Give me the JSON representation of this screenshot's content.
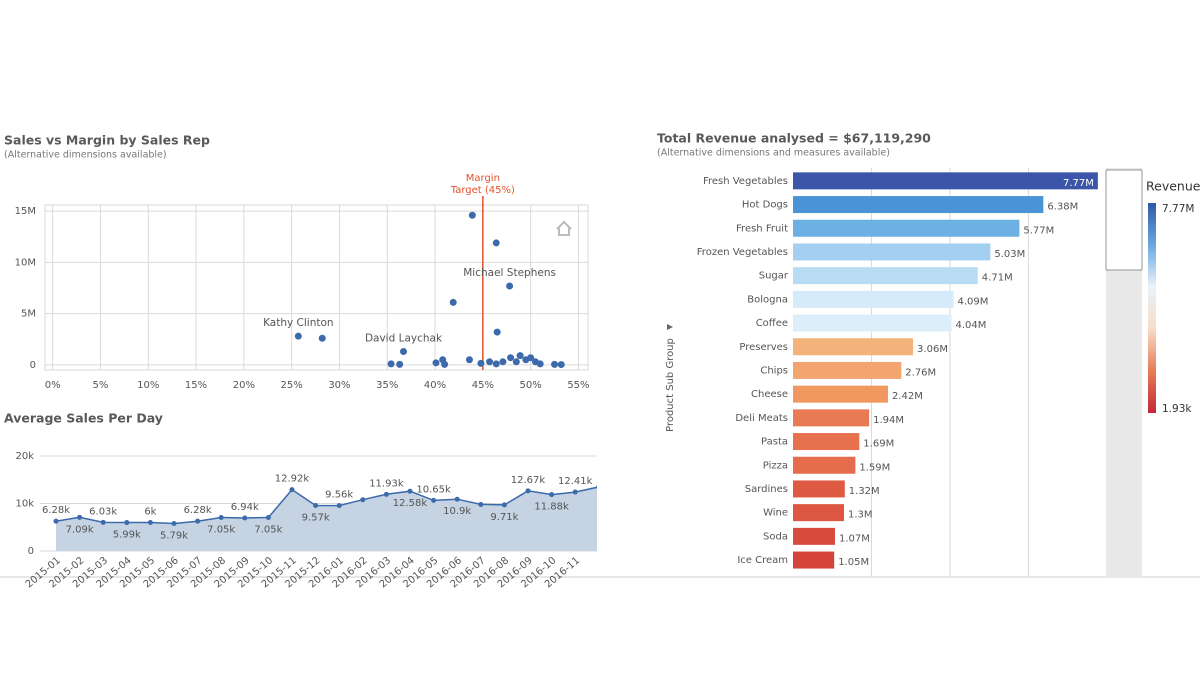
{
  "chart_data": [
    {
      "type": "scatter",
      "title": "Sales vs Margin by Sales Rep",
      "subtitle": "(Alternative dimensions available)",
      "x": [
        43.9,
        46.4,
        47.8,
        41.9,
        46.5,
        36.7,
        25.7,
        28.2,
        35.4,
        36.3,
        40.1,
        40.8,
        41.0,
        43.6,
        44.8,
        45.7,
        46.4,
        47.1,
        47.9,
        48.5,
        48.9,
        49.5,
        50.0,
        50.5,
        51.0,
        52.5,
        53.2
      ],
      "values": [
        14600000,
        11900000,
        7700000,
        6100000,
        3200000,
        1300000,
        2800000,
        2600000,
        100000,
        50000,
        200000,
        500000,
        50000,
        500000,
        150000,
        300000,
        100000,
        300000,
        700000,
        300000,
        900000,
        500000,
        700000,
        300000,
        100000,
        50000,
        30000
      ],
      "point_labels": [
        null,
        null,
        "Michael Stephens",
        null,
        null,
        "David Laychak",
        "Kathy Clinton",
        null,
        null,
        null,
        null,
        null,
        null,
        null,
        null,
        null,
        null,
        null,
        null,
        null,
        null,
        null,
        null,
        null,
        null,
        null,
        null
      ],
      "color": "#3c6aab",
      "xlim": [
        -0.8,
        56
      ],
      "ylim": [
        -500000,
        15600000
      ],
      "xticks": [
        {
          "value": 0,
          "label": "0%"
        },
        {
          "value": 5,
          "label": "5%"
        },
        {
          "value": 10,
          "label": "10%"
        },
        {
          "value": 15,
          "label": "15%"
        },
        {
          "value": 20,
          "label": "20%"
        },
        {
          "value": 25,
          "label": "25%"
        },
        {
          "value": 30,
          "label": "30%"
        },
        {
          "value": 35,
          "label": "35%"
        },
        {
          "value": 40,
          "label": "40%"
        },
        {
          "value": 45,
          "label": "45%"
        },
        {
          "value": 50,
          "label": "50%"
        },
        {
          "value": 55,
          "label": "55%"
        }
      ],
      "yticks": [
        0,
        {
          "value": 5000000,
          "label": "5M"
        },
        {
          "value": 10000000,
          "label": "10M"
        },
        {
          "value": 15000000,
          "label": "15M"
        }
      ],
      "grid": true,
      "reference_line": {
        "value": 45,
        "label": [
          "Margin",
          "Target (45%)"
        ],
        "color": "#e8502a"
      }
    },
    {
      "type": "line",
      "title": "Average Sales Per Day",
      "categories": [
        "2015-01",
        "2015-02",
        "2015-03",
        "2015-04",
        "2015-05",
        "2015-06",
        "2015-07",
        "2015-08",
        "2015-09",
        "2015-10",
        "2015-11",
        "2015-12",
        "2016-01",
        "2016-02",
        "2016-03",
        "2016-04",
        "2016-05",
        "2016-06",
        "2016-07",
        "2016-08",
        "2016-09",
        "2016-10",
        "2016-11",
        null
      ],
      "values": [
        6280,
        7090,
        6030,
        5990,
        6000,
        5790,
        6280,
        7050,
        6940,
        7050,
        12920,
        9570,
        9560,
        10800,
        11930,
        12580,
        10650,
        10900,
        9800,
        9710,
        12670,
        11880,
        12410,
        13500
      ],
      "value_labels": [
        "6.28k",
        "7.09k",
        "6.03k",
        "5.99k",
        "6k",
        "5.79k",
        "6.28k",
        "7.05k",
        "6.94k",
        "7.05k",
        "12.92k",
        "9.57k",
        "9.56k",
        null,
        "11.93k",
        "12.58k",
        "10.65k",
        "10.9k",
        null,
        "9.71k",
        "12.67k",
        "11.88k",
        "12.41k",
        null
      ],
      "color": "#3c6aab",
      "area_color": "#c5d3e3",
      "ylim": [
        0,
        24000
      ],
      "yticks": [
        0,
        {
          "value": 10000,
          "label": "10k"
        },
        {
          "value": 20000,
          "label": "20k"
        }
      ],
      "grid": true
    },
    {
      "type": "hbar",
      "title": "Total Revenue analysed = $67,119,290",
      "subtitle": "(Alternative dimensions and measures available)",
      "y_label": "Product Sub Group",
      "categories": [
        "Fresh Vegetables",
        "Hot Dogs",
        "Fresh Fruit",
        "Frozen Vegetables",
        "Sugar",
        "Bologna",
        "Coffee",
        "Preserves",
        "Chips",
        "Cheese",
        "Deli Meats",
        "Pasta",
        "Pizza",
        "Sardines",
        "Wine",
        "Soda",
        "Ice Cream"
      ],
      "values": [
        7770000,
        6380000,
        5770000,
        5030000,
        4710000,
        4090000,
        4040000,
        3060000,
        2760000,
        2420000,
        1940000,
        1690000,
        1590000,
        1320000,
        1300000,
        1070000,
        1050000
      ],
      "value_labels": [
        "7.77M",
        "6.38M",
        "5.77M",
        "5.03M",
        "4.71M",
        "4.09M",
        "4.04M",
        "3.06M",
        "2.76M",
        "2.42M",
        "1.94M",
        "1.69M",
        "1.59M",
        "1.32M",
        "1.3M",
        "1.07M",
        "1.05M"
      ],
      "colors": [
        "#3b56a8",
        "#4a94d6",
        "#6cb0e4",
        "#a3d0f0",
        "#b9dcf5",
        "#d6ebfa",
        "#dbeefa",
        "#f3b37a",
        "#f2a56e",
        "#f0985f",
        "#e87b55",
        "#e7704f",
        "#e56c4c",
        "#df5a43",
        "#dc5641",
        "#d84a3c",
        "#d5443a"
      ],
      "xlim": [
        0,
        7850000
      ],
      "gridlines": [
        2000000,
        4000000,
        6000000
      ],
      "legend": {
        "title": "Revenue",
        "max": {
          "value": 7770000,
          "label": "7.77M"
        },
        "min": {
          "value": 1930,
          "label": "1.93k"
        },
        "gradient": [
          "#2e5aa8",
          "#6aa8de",
          "#eaf3fb",
          "#f6dcc8",
          "#e77c56",
          "#c3283a"
        ]
      }
    }
  ]
}
